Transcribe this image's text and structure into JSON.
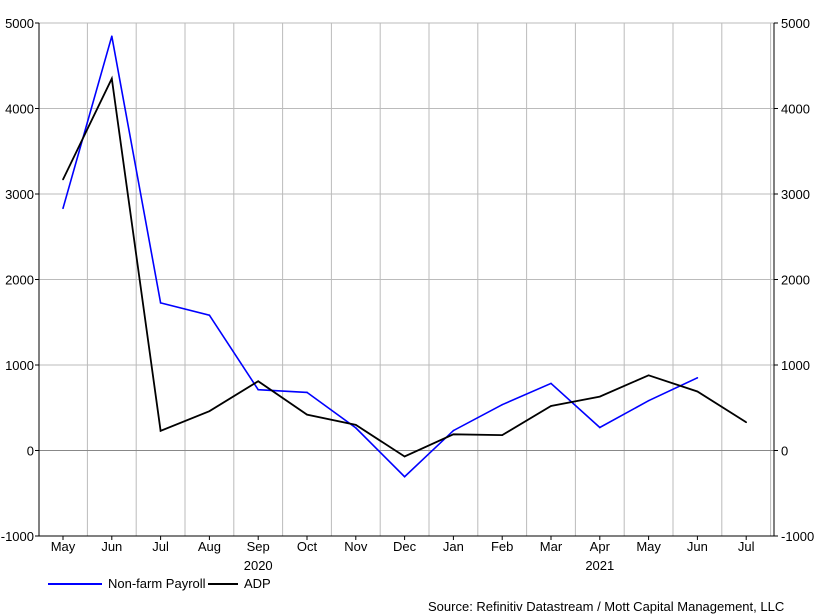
{
  "chart_data": {
    "type": "line",
    "x": [
      "May",
      "Jun",
      "Jul",
      "Aug",
      "Sep",
      "Oct",
      "Nov",
      "Dec",
      "Jan",
      "Feb",
      "Mar",
      "Apr",
      "May",
      "Jun",
      "Jul"
    ],
    "year_labels": [
      {
        "label": "2020",
        "under_index": 4
      },
      {
        "label": "2021",
        "under_index": 11
      }
    ],
    "series": [
      {
        "name": "Non-farm Payroll",
        "color": "#0000ff",
        "values": [
          2833,
          4846,
          1726,
          1583,
          711,
          680,
          264,
          -306,
          233,
          536,
          785,
          269,
          583,
          850,
          null
        ]
      },
      {
        "name": "ADP",
        "color": "#000000",
        "values": [
          3170,
          4350,
          230,
          460,
          810,
          420,
          300,
          -70,
          190,
          180,
          520,
          630,
          880,
          690,
          330
        ]
      }
    ],
    "ylim": [
      -1000,
      5000
    ],
    "yticks": [
      -1000,
      0,
      1000,
      2000,
      3000,
      4000,
      5000
    ],
    "grid": true,
    "legend_position": "bottom-left",
    "source": "Source: Refinitiv Datastream / Mott Capital Management, LLC"
  }
}
